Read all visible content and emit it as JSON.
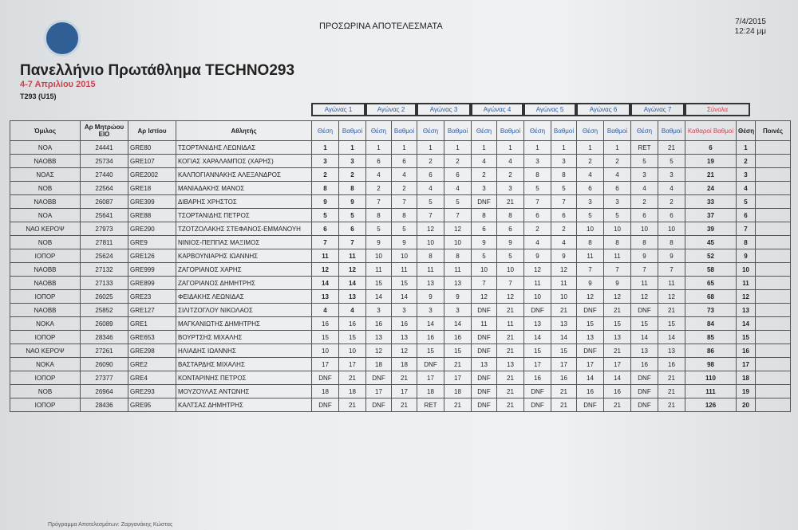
{
  "header": {
    "heading": "ΠΡΟΣΩΡΙΝΑ ΑΠΟΤΕΛΕΣΜΑΤΑ",
    "date": "7/4/2015",
    "time": "12:24 μμ",
    "title": "Πανελλήνιο Πρωτάθλημα TECHNO293",
    "dates": "4-7 Απριλίου  2015",
    "class": "T293 (U15)"
  },
  "table": {
    "groups": [
      "Αγώνας 1",
      "Αγώνας 2",
      "Αγώνας 3",
      "Αγώνας 4",
      "Αγώνας 5",
      "Αγώνας 6",
      "Αγώνας 7",
      "Σύνολα"
    ],
    "columns": [
      "Όμιλος",
      "Αρ Μητρώου ΕΙΟ",
      "Αρ Ιστίου",
      "Αθλητής",
      "Θέση",
      "Βαθμοί",
      "Θέση",
      "Βαθμοί",
      "Θέση",
      "Βαθμοί",
      "Θέση",
      "Βαθμοί",
      "Θέση",
      "Βαθμοί",
      "Θέση",
      "Βαθμοί",
      "Θέση",
      "Βαθμοί",
      "Καθαροί Βαθμοί",
      "Θέση",
      "Ποινές"
    ],
    "rows": [
      [
        "NOA",
        24441,
        "GRE80",
        "ΤΣΟΡΤΑΝΙΔΗΣ ΛΕΩΝΙΔΑΣ",
        1,
        1,
        1,
        1,
        1,
        1,
        1,
        1,
        1,
        1,
        1,
        1,
        "RET",
        21,
        6,
        1
      ],
      [
        "NAOBB",
        25734,
        "GRE107",
        "ΚΟΓΙΑΣ ΧΑΡΑΛΑΜΠΟΣ (ΧΑΡΗΣ)",
        3,
        3,
        6,
        6,
        2,
        2,
        4,
        4,
        3,
        3,
        2,
        2,
        5,
        5,
        19,
        2
      ],
      [
        "NOAΣ",
        27440,
        "GRE2002",
        "ΚΑΛΠΟΓΙΑΝΝΑΚΗΣ ΑΛΕΞΑΝΔΡΟΣ",
        2,
        2,
        4,
        4,
        6,
        6,
        2,
        2,
        8,
        8,
        4,
        4,
        3,
        3,
        21,
        3
      ],
      [
        "NOB",
        22564,
        "GRE18",
        "ΜΑΝΙΑΔΑΚΗΣ ΜΑΝΟΣ",
        8,
        8,
        2,
        2,
        4,
        4,
        3,
        3,
        5,
        5,
        6,
        6,
        4,
        4,
        24,
        4
      ],
      [
        "NAOBB",
        26087,
        "GRE399",
        "ΔΙΒΑΡΗΣ ΧΡΗΣΤΟΣ",
        9,
        9,
        7,
        7,
        5,
        5,
        "DNF",
        21,
        7,
        7,
        3,
        3,
        2,
        2,
        33,
        5
      ],
      [
        "NOA",
        25641,
        "GRE88",
        "ΤΣΟΡΤΑΝΙΔΗΣ ΠΕΤΡΟΣ",
        5,
        5,
        8,
        8,
        7,
        7,
        8,
        8,
        6,
        6,
        5,
        5,
        6,
        6,
        37,
        6
      ],
      [
        "ΝΑΟ ΚΕΡΟΨ",
        27973,
        "GRE290",
        "ΤΖΟΤΖΟΛΑΚΗΣ ΣΤΕΦΑΝΟΣ-ΕΜΜΑΝΟΥΗ",
        6,
        6,
        5,
        5,
        12,
        12,
        6,
        6,
        2,
        2,
        10,
        10,
        10,
        10,
        39,
        7
      ],
      [
        "NOB",
        27811,
        "GRE9",
        "ΝΙΝΙΟΣ-ΠΕΠΠΑΣ ΜΑΞΙΜΟΣ",
        7,
        7,
        9,
        9,
        10,
        10,
        9,
        9,
        4,
        4,
        8,
        8,
        8,
        8,
        45,
        8
      ],
      [
        "ΙΟΠΟΡ",
        25624,
        "GRE126",
        "ΚΑΡΒΟΥΝΙΑΡΗΣ ΙΩΑΝΝΗΣ",
        11,
        11,
        10,
        10,
        8,
        8,
        5,
        5,
        9,
        9,
        11,
        11,
        9,
        9,
        52,
        9
      ],
      [
        "NAOBB",
        27132,
        "GRE999",
        "ΖΑΓΟΡΙΑΝΟΣ ΧΑΡΗΣ",
        12,
        12,
        11,
        11,
        11,
        11,
        10,
        10,
        12,
        12,
        7,
        7,
        7,
        7,
        58,
        10
      ],
      [
        "NAOBB",
        27133,
        "GRE899",
        "ΖΑΓΟΡΙΑΝΟΣ ΔΗΜΗΤΡΗΣ",
        14,
        14,
        15,
        15,
        13,
        13,
        7,
        7,
        11,
        11,
        9,
        9,
        11,
        11,
        65,
        11
      ],
      [
        "ΙΟΠΟΡ",
        26025,
        "GRE23",
        "ΦΕΙΔΑΚΗΣ ΛΕΩΝΙΔΑΣ",
        13,
        13,
        14,
        14,
        9,
        9,
        12,
        12,
        10,
        10,
        12,
        12,
        12,
        12,
        68,
        12
      ],
      [
        "NAOBB",
        25852,
        "GRE127",
        "ΣΙΛΙΤΖΟΓΛΟΥ ΝΙΚΟΛΑΟΣ",
        4,
        4,
        3,
        3,
        3,
        3,
        "DNF",
        21,
        "DNF",
        21,
        "DNF",
        21,
        "DNF",
        21,
        73,
        13
      ],
      [
        "NOKA",
        26089,
        "GRE1",
        "ΜΑΓΚΑΝΙΩΤΗΣ ΔΗΜΗΤΡΗΣ",
        16,
        16,
        16,
        16,
        14,
        14,
        11,
        11,
        13,
        13,
        15,
        15,
        15,
        15,
        84,
        14
      ],
      [
        "ΙΟΠΟΡ",
        28346,
        "GRE653",
        "ΒΟΥΡΤΣΗΣ ΜΙΧΑΛΗΣ",
        15,
        15,
        13,
        13,
        16,
        16,
        "DNF",
        21,
        14,
        14,
        13,
        13,
        14,
        14,
        85,
        15
      ],
      [
        "ΝΑΟ ΚΕΡΟΨ",
        27261,
        "GRE298",
        "ΗΛΙΑΔΗΣ ΙΩΑΝΝΗΣ",
        10,
        10,
        12,
        12,
        15,
        15,
        "DNF",
        21,
        15,
        15,
        "DNF",
        21,
        13,
        13,
        86,
        16
      ],
      [
        "NOKA",
        26090,
        "GRE2",
        "ΒΑΣΤΑΡΔΗΣ ΜΙΧΑΛΗΣ",
        17,
        17,
        18,
        18,
        "DNF",
        21,
        13,
        13,
        17,
        17,
        17,
        17,
        16,
        16,
        98,
        17
      ],
      [
        "ΙΟΠΟΡ",
        27377,
        "GRE4",
        "ΚΟΝΤΑΡΙΝΗΣ ΠΕΤΡΟΣ",
        "DNF",
        21,
        "DNF",
        21,
        17,
        17,
        "DNF",
        21,
        16,
        16,
        14,
        14,
        "DNF",
        21,
        110,
        18
      ],
      [
        "NOB",
        26964,
        "GRE293",
        "ΜΟΥΖΟΥΛΑΣ ΑΝΤΩΝΗΣ",
        18,
        18,
        17,
        17,
        18,
        18,
        "DNF",
        21,
        "DNF",
        21,
        16,
        16,
        "DNF",
        21,
        111,
        19
      ],
      [
        "ΙΟΠΟΡ",
        28436,
        "GRE95",
        "ΚΑΛΤΣΑΣ ΔΗΜΗΤΡΗΣ",
        "DNF",
        21,
        "DNF",
        21,
        "RET",
        21,
        "DNF",
        21,
        "DNF",
        21,
        "DNF",
        21,
        "DNF",
        21,
        126,
        20
      ]
    ]
  },
  "footer": "Πρόγραμμα Αποτελεσμάτων: Ζαργανάκης Κώστας"
}
